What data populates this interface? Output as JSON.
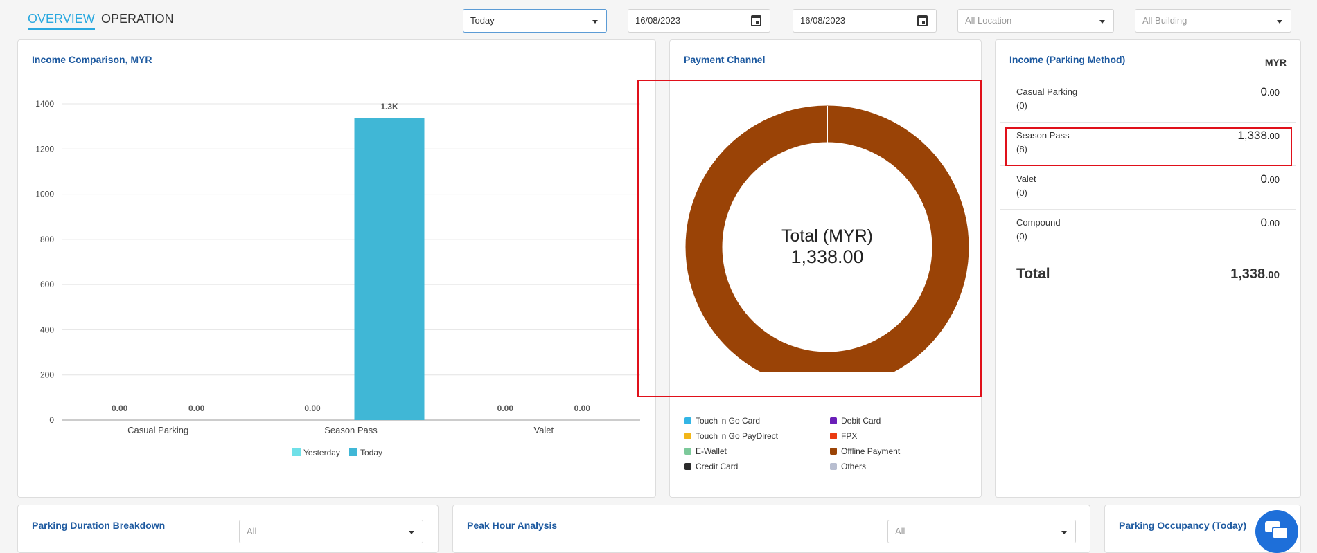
{
  "tabs": {
    "overview": "OVERVIEW",
    "operation": "OPERATION"
  },
  "filters": {
    "period": "Today",
    "date_from": "16/08/2023",
    "date_to": "16/08/2023",
    "location": "All Location",
    "building": "All Building"
  },
  "income_comparison": {
    "title": "Income Comparison, MYR",
    "bar_labels": [
      "0.00",
      "0.00",
      "0.00",
      "1.3K",
      "0.00",
      "0.00"
    ]
  },
  "chart_data": {
    "type": "bar",
    "categories": [
      "Casual Parking",
      "Season Pass",
      "Valet"
    ],
    "series": [
      {
        "name": "Yesterday",
        "values": [
          0,
          0,
          0
        ],
        "color": "#6fe0e8"
      },
      {
        "name": "Today",
        "values": [
          0,
          1338,
          0
        ],
        "color": "#40b7d6"
      }
    ],
    "yticks": [
      "0",
      "200",
      "400",
      "600",
      "800",
      "1000",
      "1200",
      "1400"
    ],
    "ylim": [
      0,
      1400
    ],
    "grid": true,
    "legend": "bottom"
  },
  "payment_channel": {
    "title": "Payment Channel",
    "center_label": "Total (MYR)",
    "center_value": "1,338.00",
    "slice": {
      "name": "Offline Payment",
      "value": 1338,
      "color": "#9a4306"
    },
    "legend": [
      {
        "label": "Touch 'n Go Card",
        "color": "#33b5e5"
      },
      {
        "label": "Debit Card",
        "color": "#6a1fb8"
      },
      {
        "label": "Touch 'n Go PayDirect",
        "color": "#f2b619"
      },
      {
        "label": "FPX",
        "color": "#ea3b12"
      },
      {
        "label": "E-Wallet",
        "color": "#7cc99a"
      },
      {
        "label": "Offline Payment",
        "color": "#9a4306"
      },
      {
        "label": "Credit Card",
        "color": "#2b2b2b"
      },
      {
        "label": "Others",
        "color": "#b8bed0"
      }
    ]
  },
  "income_method": {
    "title": "Income (Parking Method)",
    "currency": "MYR",
    "rows": [
      {
        "label": "Casual Parking",
        "count": "(0)",
        "amount": "0",
        "decimals": ".00"
      },
      {
        "label": "Season Pass",
        "count": "(8)",
        "amount": "1,338",
        "decimals": ".00"
      },
      {
        "label": "Valet",
        "count": "(0)",
        "amount": "0",
        "decimals": ".00"
      },
      {
        "label": "Compound",
        "count": "(0)",
        "amount": "0",
        "decimals": ".00"
      }
    ],
    "total_label": "Total",
    "total_amount": "1,338",
    "total_decimals": ".00"
  },
  "bottom_cards": {
    "duration_title": "Parking Duration Breakdown",
    "duration_filter": "All",
    "peak_title": "Peak Hour Analysis",
    "peak_filter": "All",
    "occupancy_title": "Parking Occupancy (Today)"
  }
}
